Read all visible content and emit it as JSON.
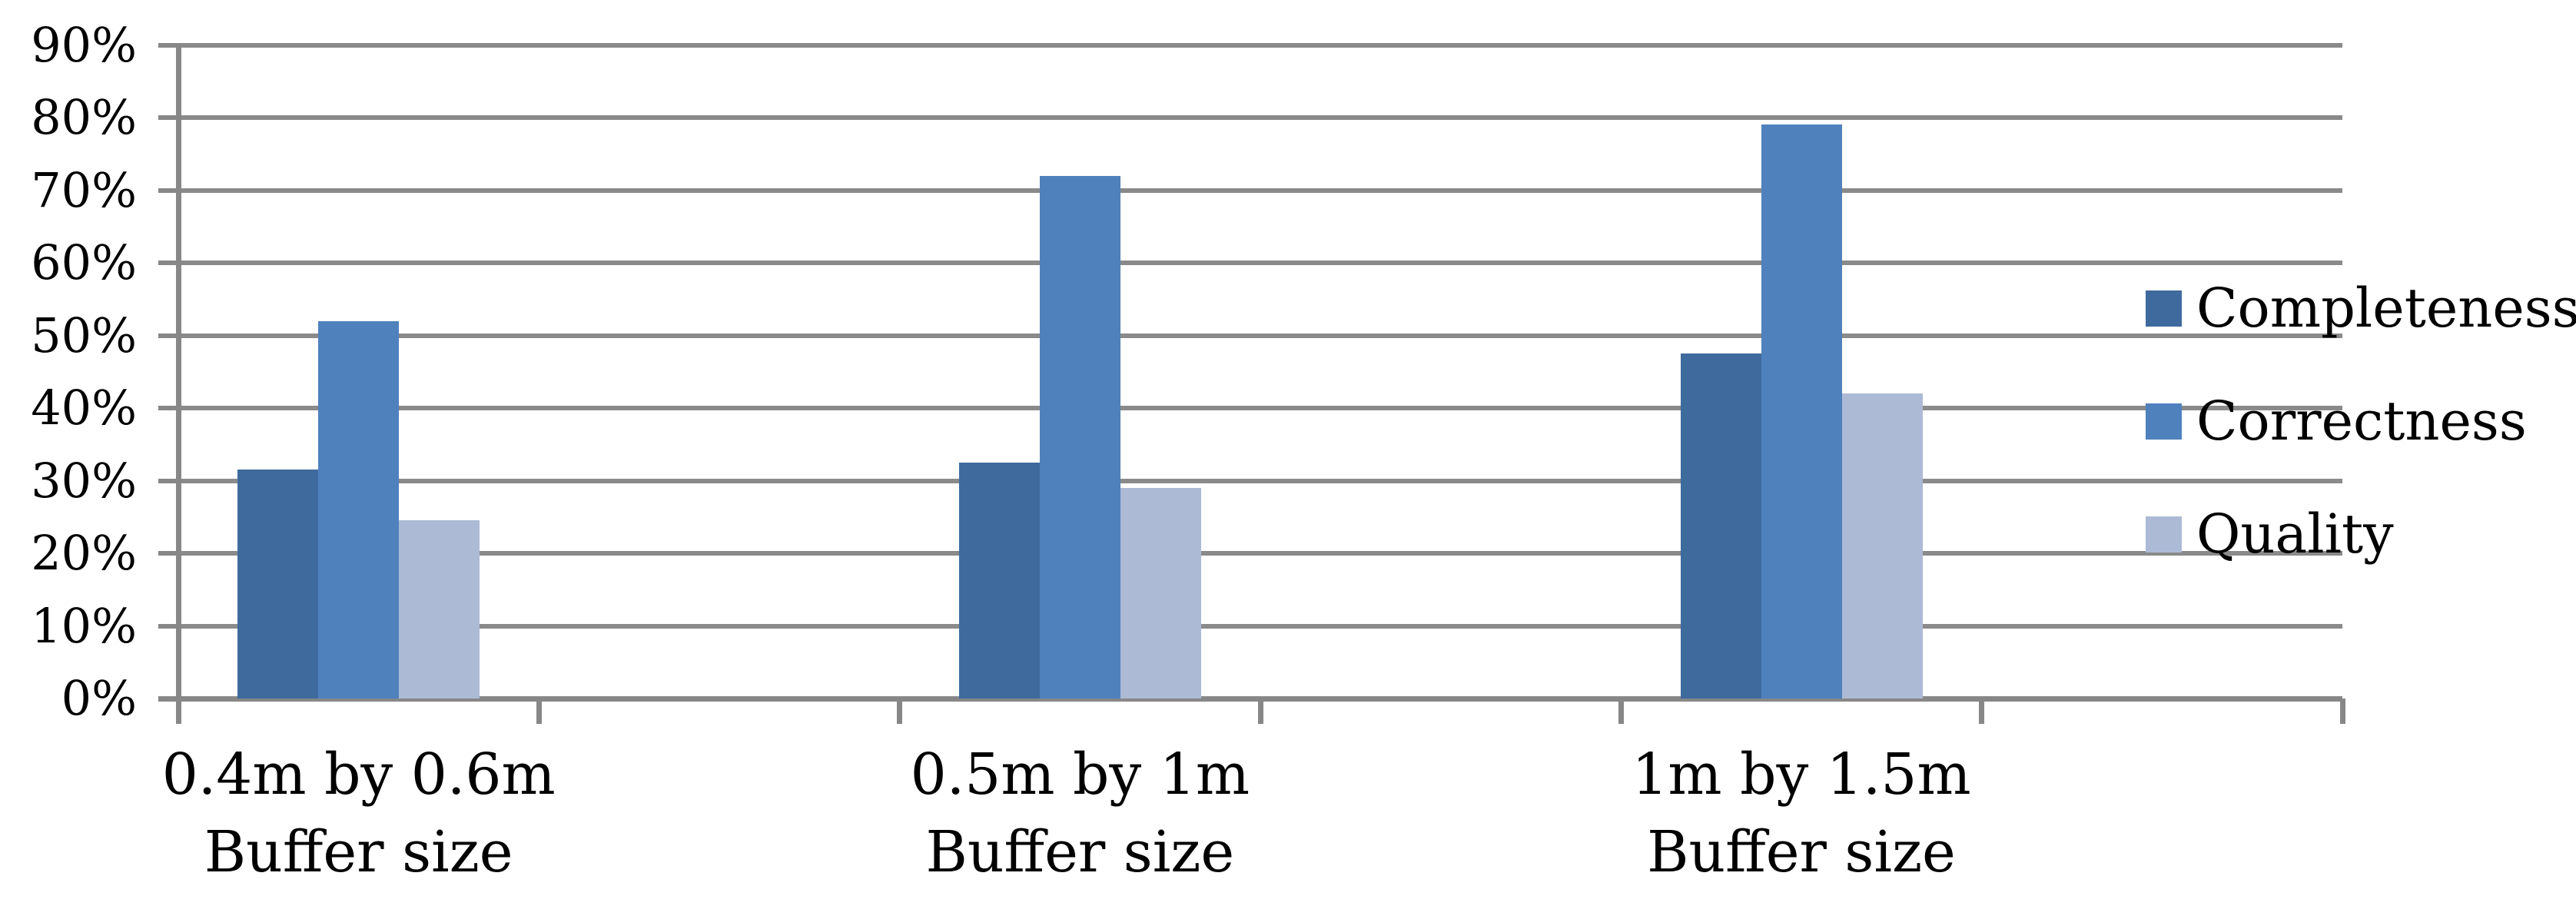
{
  "chart_data": {
    "type": "bar",
    "title": "",
    "categories": [
      "0.4m by 0.6m",
      "0.5m by 1m",
      "1m by 1.5m"
    ],
    "category_sublabel": "Buffer size",
    "x_tick_labels_lines": [
      [
        "0.4m by 0.6m",
        "Buffer size"
      ],
      [
        "0.5m by 1m",
        "Buffer size"
      ],
      [
        "1m by 1.5m",
        "Buffer size"
      ]
    ],
    "series": [
      {
        "name": "Completeness",
        "color": "#3F6A9D",
        "values": [
          31.5,
          32.5,
          47.5
        ]
      },
      {
        "name": "Correctness",
        "color": "#4F81BD",
        "values": [
          52,
          72,
          79
        ]
      },
      {
        "name": "Quality",
        "color": "#ACBAD6",
        "values": [
          24.5,
          29,
          42
        ]
      }
    ],
    "values_unit": "%",
    "ylim": [
      0,
      90
    ],
    "ytick_step": 10,
    "ytick_labels": [
      "0%",
      "10%",
      "20%",
      "30%",
      "40%",
      "50%",
      "60%",
      "70%",
      "80%",
      "90%"
    ],
    "grid": true,
    "legend_position": "right",
    "gridline_color": "#8A8A8A",
    "axis_color": "#878787",
    "background_color": "#FFFFFF",
    "text_color": "#000000"
  }
}
